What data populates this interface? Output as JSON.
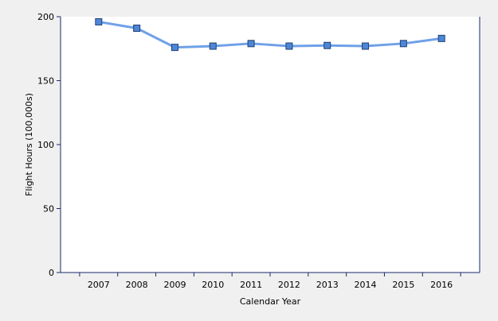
{
  "chart_data": {
    "type": "line",
    "title": "",
    "xlabel": "Calendar Year",
    "ylabel": "Flight Hours (100,000s)",
    "categories": [
      "2007",
      "2008",
      "2009",
      "2010",
      "2011",
      "2012",
      "2013",
      "2014",
      "2015",
      "2016"
    ],
    "series": [
      {
        "values": [
          196,
          191,
          176,
          177,
          179,
          177,
          177.5,
          177,
          179,
          183
        ],
        "color": "#6fa1e8",
        "marker_color": "#4d86d6"
      }
    ],
    "ylim": [
      0,
      200
    ],
    "yticks": [
      0,
      50,
      100,
      150,
      200
    ],
    "grid": false,
    "legend": "none",
    "colors": {
      "background": "#f0f0f0",
      "plot_background": "#ffffff",
      "axis": "#1a2a6b"
    }
  }
}
